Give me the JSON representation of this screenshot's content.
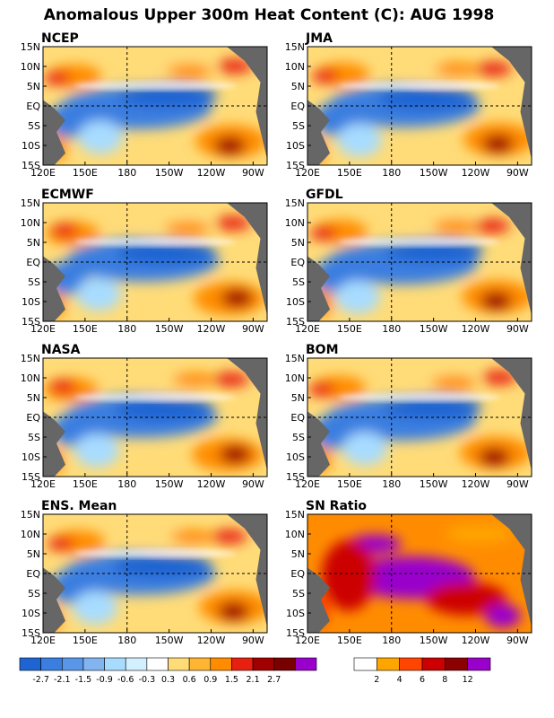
{
  "title": "Anomalous Upper 300m Heat Content (C): AUG 1998",
  "axes": {
    "lat_ticks": [
      "15N",
      "10N",
      "5N",
      "EQ",
      "5S",
      "10S",
      "15S"
    ],
    "lon_ticks": [
      "120E",
      "150E",
      "180",
      "150W",
      "120W",
      "90W"
    ]
  },
  "colors": {
    "land": "#666666",
    "neg_main": "#3a7ee0",
    "neg_light": "#a8dcff",
    "pos_light": "#ffdc78",
    "pos_mid": "#ff8c00",
    "pos_strong": "#e82010",
    "pos_dark": "#a00000",
    "sn_purple": "#9900cc"
  },
  "chart_data": [
    {
      "type": "heatmap",
      "title": "NCEP",
      "lat_range": [
        -15,
        15
      ],
      "lon_range": [
        120,
        280
      ],
      "lat_ticks": [
        "15N",
        "10N",
        "5N",
        "EQ",
        "5S",
        "10S",
        "15S"
      ],
      "lon_ticks": [
        "120E",
        "150E",
        "180",
        "150W",
        "120W",
        "90W"
      ]
    },
    {
      "type": "heatmap",
      "title": "JMA",
      "lat_range": [
        -15,
        15
      ],
      "lon_range": [
        120,
        280
      ],
      "lat_ticks": [
        "15N",
        "10N",
        "5N",
        "EQ",
        "5S",
        "10S",
        "15S"
      ],
      "lon_ticks": [
        "120E",
        "150E",
        "180",
        "150W",
        "120W",
        "90W"
      ]
    },
    {
      "type": "heatmap",
      "title": "ECMWF",
      "lat_range": [
        -15,
        15
      ],
      "lon_range": [
        120,
        280
      ],
      "lat_ticks": [
        "15N",
        "10N",
        "5N",
        "EQ",
        "5S",
        "10S",
        "15S"
      ],
      "lon_ticks": [
        "120E",
        "150E",
        "180",
        "150W",
        "120W",
        "90W"
      ]
    },
    {
      "type": "heatmap",
      "title": "GFDL",
      "lat_range": [
        -15,
        15
      ],
      "lon_range": [
        120,
        280
      ],
      "lat_ticks": [
        "15N",
        "10N",
        "5N",
        "EQ",
        "5S",
        "10S",
        "15S"
      ],
      "lon_ticks": [
        "120E",
        "150E",
        "180",
        "150W",
        "120W",
        "90W"
      ]
    },
    {
      "type": "heatmap",
      "title": "NASA",
      "lat_range": [
        -15,
        15
      ],
      "lon_range": [
        120,
        280
      ],
      "lat_ticks": [
        "15N",
        "10N",
        "5N",
        "EQ",
        "5S",
        "10S",
        "15S"
      ],
      "lon_ticks": [
        "120E",
        "150E",
        "180",
        "150W",
        "120W",
        "90W"
      ]
    },
    {
      "type": "heatmap",
      "title": "BOM",
      "lat_range": [
        -15,
        15
      ],
      "lon_range": [
        120,
        280
      ],
      "lat_ticks": [
        "15N",
        "10N",
        "5N",
        "EQ",
        "5S",
        "10S",
        "15S"
      ],
      "lon_ticks": [
        "120E",
        "150E",
        "180",
        "150W",
        "120W",
        "90W"
      ]
    },
    {
      "type": "heatmap",
      "title": "ENS. Mean",
      "lat_range": [
        -15,
        15
      ],
      "lon_range": [
        120,
        280
      ],
      "lat_ticks": [
        "15N",
        "10N",
        "5N",
        "EQ",
        "5S",
        "10S",
        "15S"
      ],
      "lon_ticks": [
        "120E",
        "150E",
        "180",
        "150W",
        "120W",
        "90W"
      ]
    },
    {
      "type": "heatmap",
      "title": "SN Ratio",
      "lat_range": [
        -15,
        15
      ],
      "lon_range": [
        120,
        280
      ],
      "lat_ticks": [
        "15N",
        "10N",
        "5N",
        "EQ",
        "5S",
        "10S",
        "15S"
      ],
      "lon_ticks": [
        "120E",
        "150E",
        "180",
        "150W",
        "120W",
        "90W"
      ]
    }
  ],
  "colorbars": {
    "anomaly": {
      "colors": [
        "#1e64d2",
        "#3a7ee0",
        "#5a96e8",
        "#82b4f0",
        "#a8dcff",
        "#d2f0ff",
        "#ffffff",
        "#ffdc78",
        "#ffb432",
        "#ff8c00",
        "#e82010",
        "#a00000",
        "#780000",
        "#9900cc"
      ],
      "labels": [
        "-2.7",
        "-2.1",
        "-1.5",
        "-0.9",
        "-0.6",
        "-0.3",
        "0.3",
        "0.6",
        "0.9",
        "1.5",
        "2.1",
        "2.7"
      ]
    },
    "sn": {
      "colors": [
        "#ffffff",
        "#ffa500",
        "#ff4500",
        "#cc0000",
        "#8b0000",
        "#9900cc"
      ],
      "labels": [
        "2",
        "4",
        "6",
        "8",
        "12"
      ]
    }
  }
}
